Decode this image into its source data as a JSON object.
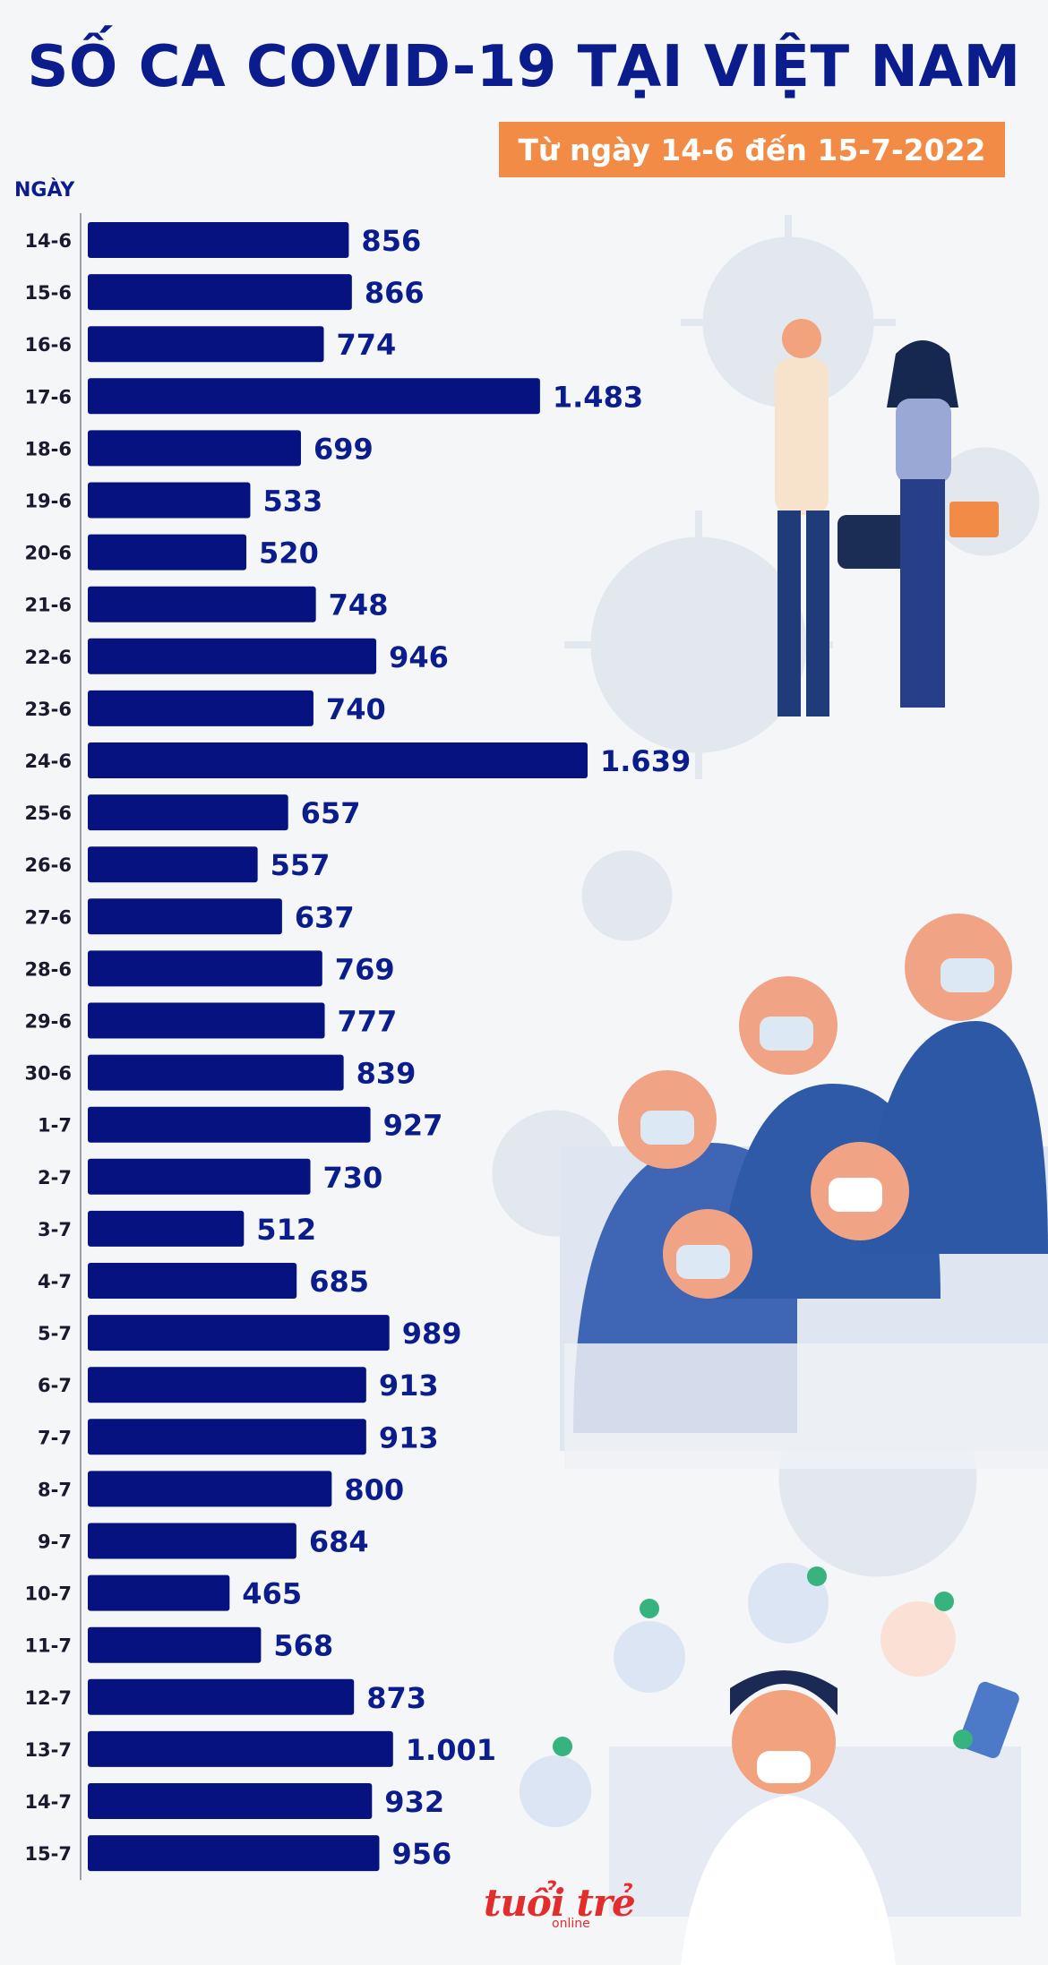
{
  "title": "SỐ CA COVID-19 TẠI VIỆT NAM",
  "subtitle": "Từ ngày 14-6 đến 15-7-2022",
  "axis_title": "NGÀY",
  "logo": {
    "text": "tuổi trẻ",
    "sub": "online"
  },
  "colors": {
    "bar": "#06127f",
    "title": "#0b1c8c",
    "subtitle_bg": "#f28b46",
    "background": "#f5f6f8"
  },
  "chart_data": {
    "type": "bar",
    "orientation": "horizontal",
    "xlabel": "",
    "ylabel": "NGÀY",
    "xlim": [
      0,
      1639
    ],
    "grid": false,
    "categories": [
      "14-6",
      "15-6",
      "16-6",
      "17-6",
      "18-6",
      "19-6",
      "20-6",
      "21-6",
      "22-6",
      "23-6",
      "24-6",
      "25-6",
      "26-6",
      "27-6",
      "28-6",
      "29-6",
      "30-6",
      "1-7",
      "2-7",
      "3-7",
      "4-7",
      "5-7",
      "6-7",
      "7-7",
      "8-7",
      "9-7",
      "10-7",
      "11-7",
      "12-7",
      "13-7",
      "14-7",
      "15-7"
    ],
    "values": [
      856,
      866,
      774,
      1483,
      699,
      533,
      520,
      748,
      946,
      740,
      1639,
      657,
      557,
      637,
      769,
      777,
      839,
      927,
      730,
      512,
      685,
      989,
      913,
      913,
      800,
      684,
      465,
      568,
      873,
      1001,
      932,
      956
    ],
    "labels": [
      "856",
      "866",
      "774",
      "1.483",
      "699",
      "533",
      "520",
      "748",
      "946",
      "740",
      "1.639",
      "657",
      "557",
      "637",
      "769",
      "777",
      "839",
      "927",
      "730",
      "512",
      "685",
      "989",
      "913",
      "913",
      "800",
      "684",
      "465",
      "568",
      "873",
      "1.001",
      "932",
      "956"
    ]
  }
}
